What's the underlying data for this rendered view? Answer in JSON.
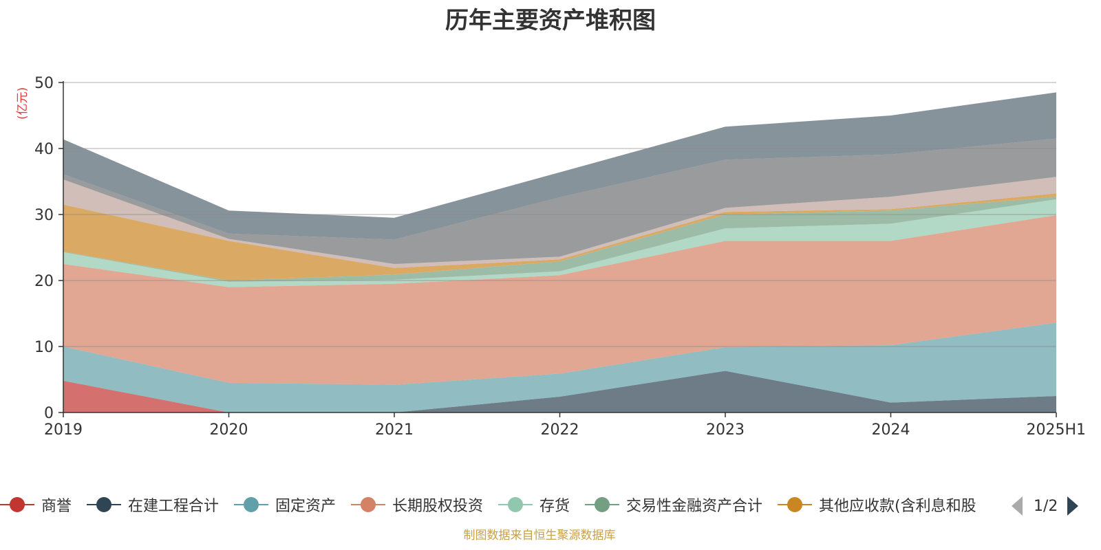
{
  "title": "历年主要资产堆积图",
  "unit_label": "(亿元)",
  "source": "制图数据来自恒生聚源数据库",
  "legend": {
    "items": [
      {
        "name": "商誉",
        "color": "#c23531"
      },
      {
        "name": "在建工程合计",
        "color": "#2f4554"
      },
      {
        "name": "固定资产",
        "color": "#61a0a8"
      },
      {
        "name": "长期股权投资",
        "color": "#d48265"
      },
      {
        "name": "存货",
        "color": "#91c7ae"
      },
      {
        "name": "交易性金融资产合计",
        "color": "#749f83"
      },
      {
        "name": "其他应收款(含利息和股",
        "color": "#ca8622"
      }
    ],
    "page": "1/2"
  },
  "chart_data": {
    "type": "area",
    "stacked": true,
    "categories": [
      "2019",
      "2020",
      "2021",
      "2022",
      "2023",
      "2024",
      "2025H1"
    ],
    "ylim": [
      0,
      50
    ],
    "yticks": [
      0,
      10,
      20,
      30,
      40,
      50
    ],
    "ylabel": "(亿元)",
    "grid": true,
    "legend_position": "bottom",
    "series": [
      {
        "name": "商誉",
        "color": "#c23531",
        "values": [
          4.8,
          0,
          0,
          0,
          0,
          0,
          0
        ]
      },
      {
        "name": "在建工程合计",
        "color": "#2f4554",
        "values": [
          0,
          0,
          0,
          2.4,
          6.3,
          1.5,
          2.5
        ]
      },
      {
        "name": "固定资产",
        "color": "#61a0a8",
        "values": [
          5.2,
          4.5,
          4.2,
          3.5,
          3.6,
          8.7,
          11.1
        ]
      },
      {
        "name": "长期股权投资",
        "color": "#d48265",
        "values": [
          12.5,
          14.5,
          15.3,
          14.9,
          16.1,
          15.8,
          16.3
        ]
      },
      {
        "name": "存货",
        "color": "#91c7ae",
        "values": [
          1.8,
          0.8,
          0.6,
          0.6,
          1.9,
          2.6,
          2.4
        ]
      },
      {
        "name": "交易性金融资产合计",
        "color": "#749f83",
        "values": [
          0.1,
          0.2,
          0.8,
          1.5,
          2.1,
          2.0,
          0.4
        ]
      },
      {
        "name": "其他应收款(含利息和股利)",
        "color": "#ca8622",
        "values": [
          7.1,
          6.0,
          1.0,
          0.3,
          0.4,
          0.2,
          0.5
        ]
      },
      {
        "name": "",
        "color": "#bda29a",
        "values": [
          3.8,
          0.3,
          0.6,
          0.4,
          0.6,
          1.9,
          2.5
        ]
      },
      {
        "name": "",
        "color": "#6e7074",
        "values": [
          0.8,
          0.8,
          3.7,
          9.0,
          7.3,
          6.4,
          5.8
        ]
      },
      {
        "name": "",
        "color": "#546570",
        "values": [
          5.3,
          3.5,
          3.3,
          3.8,
          5.0,
          5.9,
          7.0
        ]
      }
    ]
  }
}
